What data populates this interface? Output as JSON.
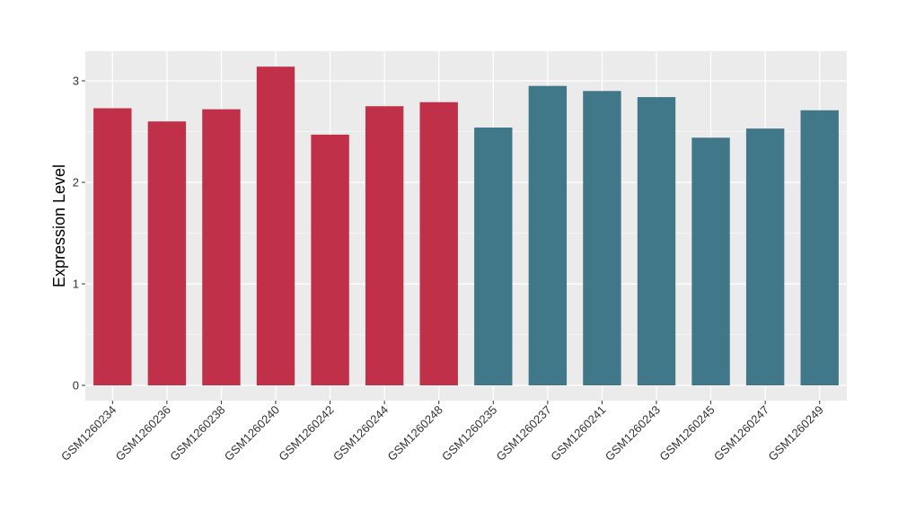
{
  "chart_data": {
    "type": "bar",
    "title": "",
    "xlabel": "",
    "ylabel": "Expression Level",
    "ylim": [
      0,
      3.25
    ],
    "yticks": [
      0,
      1,
      2,
      3
    ],
    "grid": true,
    "legend": "none",
    "categories": [
      "GSM1260234",
      "GSM1260236",
      "GSM1260238",
      "GSM1260240",
      "GSM1260242",
      "GSM1260244",
      "GSM1260248",
      "GSM1260235",
      "GSM1260237",
      "GSM1260241",
      "GSM1260243",
      "GSM1260245",
      "GSM1260247",
      "GSM1260249"
    ],
    "values": [
      2.73,
      2.6,
      2.72,
      3.14,
      2.47,
      2.75,
      2.79,
      2.54,
      2.95,
      2.9,
      2.84,
      2.44,
      2.53,
      2.71
    ],
    "group_index": [
      0,
      0,
      0,
      0,
      0,
      0,
      0,
      1,
      1,
      1,
      1,
      1,
      1,
      1
    ],
    "colors": [
      "#c03048",
      "#417889"
    ],
    "panel_background": "#ebebeb",
    "grid_color": "#ffffff"
  }
}
